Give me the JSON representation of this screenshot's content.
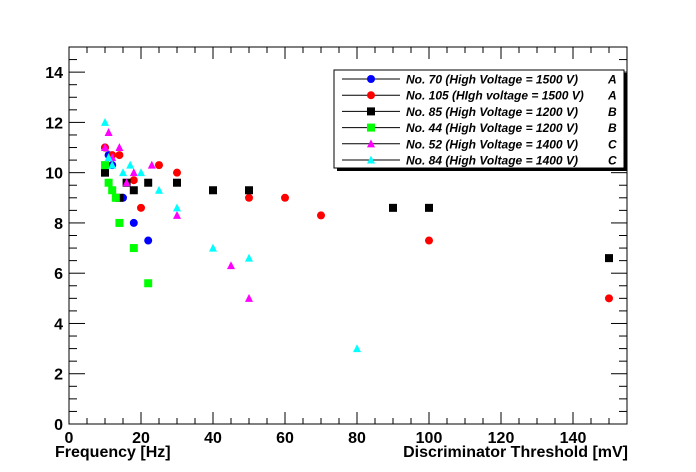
{
  "chart_data": {
    "type": "scatter",
    "xlabel": "Discriminator Threshold [mV]",
    "ylabel": "",
    "xlabel_left": "Frequency [Hz]",
    "xlim": [
      0,
      155
    ],
    "ylim": [
      0,
      15
    ],
    "x_ticks": [
      0,
      20,
      40,
      60,
      80,
      100,
      120,
      140
    ],
    "y_ticks": [
      0,
      2,
      4,
      6,
      8,
      10,
      12,
      14
    ],
    "grid": false,
    "legend_position": "top-right",
    "series": [
      {
        "name": "No. 70 (High Voltage = 1500 V)",
        "tag": "A",
        "color": "#0000ff",
        "marker": "circle",
        "points": [
          [
            10,
            11.0
          ],
          [
            11,
            10.7
          ],
          [
            12,
            10.3
          ],
          [
            15,
            9.0
          ],
          [
            18,
            8.0
          ],
          [
            22,
            7.3
          ]
        ]
      },
      {
        "name": "No. 105 (HIgh voltage = 1500 V)",
        "tag": "A",
        "color": "#ff0000",
        "marker": "circle",
        "points": [
          [
            10,
            11.0
          ],
          [
            12,
            10.7
          ],
          [
            14,
            10.7
          ],
          [
            18,
            9.7
          ],
          [
            20,
            8.6
          ],
          [
            25,
            10.3
          ],
          [
            30,
            10.0
          ],
          [
            50,
            9.0
          ],
          [
            60,
            9.0
          ],
          [
            70,
            8.3
          ],
          [
            100,
            7.3
          ],
          [
            150,
            5.0
          ]
        ]
      },
      {
        "name": "No. 85 (High Voltage = 1200 V)",
        "tag": "B",
        "color": "#000000",
        "marker": "square",
        "points": [
          [
            10,
            10.0
          ],
          [
            14,
            9.0
          ],
          [
            16,
            9.6
          ],
          [
            18,
            9.3
          ],
          [
            22,
            9.6
          ],
          [
            30,
            9.6
          ],
          [
            40,
            9.3
          ],
          [
            50,
            9.3
          ],
          [
            90,
            8.6
          ],
          [
            100,
            8.6
          ],
          [
            150,
            6.6
          ]
        ]
      },
      {
        "name": "No. 44 (High Voltage = 1200 V)",
        "tag": "B",
        "color": "#00ff00",
        "marker": "square",
        "points": [
          [
            10,
            10.3
          ],
          [
            11,
            9.6
          ],
          [
            12,
            9.3
          ],
          [
            13,
            9.0
          ],
          [
            14,
            8.0
          ],
          [
            18,
            7.0
          ],
          [
            22,
            5.6
          ]
        ]
      },
      {
        "name": "No. 52 (High Voltage = 1400 V)",
        "tag": "C",
        "color": "#ff00ff",
        "marker": "triangle",
        "points": [
          [
            10,
            11.0
          ],
          [
            11,
            11.6
          ],
          [
            12,
            10.6
          ],
          [
            14,
            11.0
          ],
          [
            16,
            9.6
          ],
          [
            18,
            10.0
          ],
          [
            23,
            10.3
          ],
          [
            30,
            8.3
          ],
          [
            45,
            6.3
          ],
          [
            50,
            5.0
          ]
        ]
      },
      {
        "name": "No. 84 (High Voltage = 1400 V)",
        "tag": "C",
        "color": "#00ffff",
        "marker": "triangle",
        "points": [
          [
            10,
            12.0
          ],
          [
            11,
            10.6
          ],
          [
            12,
            10.3
          ],
          [
            15,
            10.0
          ],
          [
            17,
            10.3
          ],
          [
            20,
            10.0
          ],
          [
            25,
            9.3
          ],
          [
            30,
            8.6
          ],
          [
            40,
            7.0
          ],
          [
            50,
            6.6
          ],
          [
            80,
            3.0
          ]
        ]
      }
    ]
  }
}
